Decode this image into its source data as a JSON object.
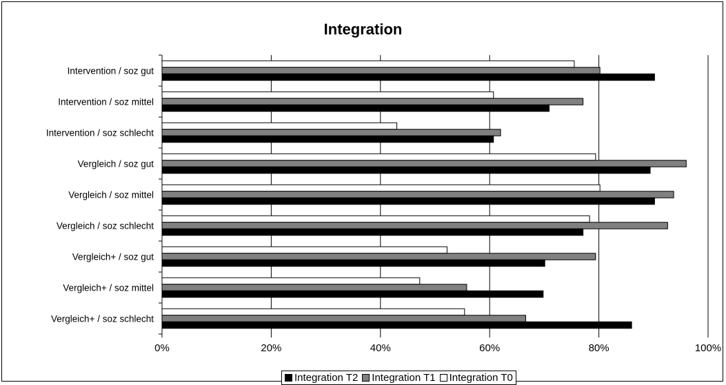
{
  "chart_data": {
    "type": "bar",
    "orientation": "horizontal",
    "title": "Integration",
    "xlabel": "",
    "ylabel": "",
    "xlim": [
      0,
      100
    ],
    "x_ticks": [
      "0%",
      "20%",
      "40%",
      "60%",
      "80%",
      "100%"
    ],
    "grid": true,
    "legend_position": "bottom",
    "categories": [
      "Intervention / soz gut",
      "Intervention / soz mittel",
      "Intervention / soz schlecht",
      "Vergleich / soz gut",
      "Vergleich / soz mittel",
      "Vergleich / soz schlecht",
      "Vergleich+ / soz gut",
      "Vergleich+ / soz mittel",
      "Vergleich+ / soz schlecht"
    ],
    "series": [
      {
        "name": "Integration T0",
        "color": "#ffffff",
        "values": [
          75.5,
          60.7,
          43,
          79.4,
          80.2,
          78.3,
          52.2,
          47.2,
          55.4
        ]
      },
      {
        "name": "Integration T1",
        "color": "#808080",
        "values": [
          80.2,
          77.1,
          62,
          96,
          93.7,
          92.6,
          79.4,
          55.8,
          66.6
        ]
      },
      {
        "name": "Integration T2",
        "color": "#000000",
        "values": [
          90.2,
          70.9,
          60.7,
          89.4,
          90.2,
          77.1,
          70.1,
          69.8,
          86
        ]
      }
    ]
  },
  "legend_order": [
    "Integration T2",
    "Integration T1",
    "Integration T0"
  ]
}
